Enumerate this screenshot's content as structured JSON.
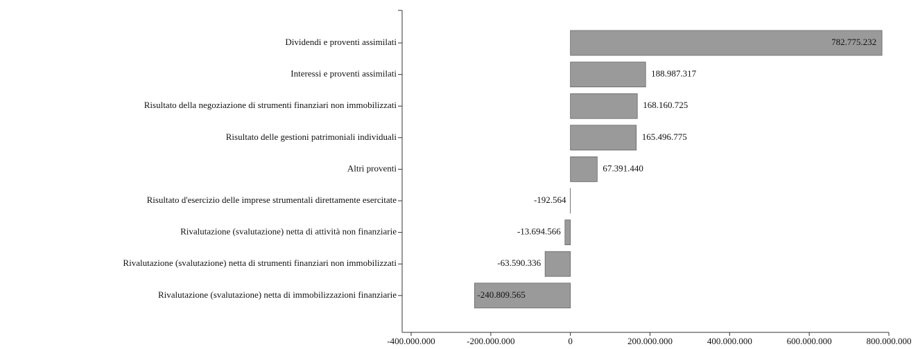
{
  "chart_data": {
    "type": "barh",
    "categories": [
      "Dividendi e proventi assimilati",
      "Interessi e proventi assimilati",
      "Risultato della negoziazione di strumenti finanziari non immobilizzati",
      "Risultato delle gestioni patrimoniali individuali",
      "Altri proventi",
      "Risultato d'esercizio delle imprese strumentali direttamente esercitate",
      "Rivalutazione (svalutazione) netta di attività non finanziarie",
      "Rivalutazione (svalutazione) netta di strumenti finanziari non immobilizzati",
      "Rivalutazione (svalutazione) netta di immobilizzazioni finanziarie"
    ],
    "values": [
      782775232,
      188987317,
      168160725,
      165496775,
      67391440,
      -192564,
      -13694566,
      -63590336,
      -240809565
    ],
    "value_labels": [
      "782.775.232",
      "188.987.317",
      "168.160.725",
      "165.496.775",
      "67.391.440",
      "-192.564",
      "-13.694.566",
      "-63.590.336",
      "-240.809.565"
    ],
    "color": "#9a9a9a",
    "xlim": [
      -400000000,
      800000000
    ],
    "xticks": [
      {
        "value": -400000000,
        "label": "-400.000.000"
      },
      {
        "value": -200000000,
        "label": "-200.000.000"
      },
      0,
      {
        "value": 200000000,
        "label": "200.000.000"
      },
      {
        "value": 400000000,
        "label": "400.000.000"
      },
      {
        "value": 600000000,
        "label": "600.000.000"
      },
      {
        "value": 800000000,
        "label": "800.000.000"
      }
    ],
    "grid": false
  }
}
